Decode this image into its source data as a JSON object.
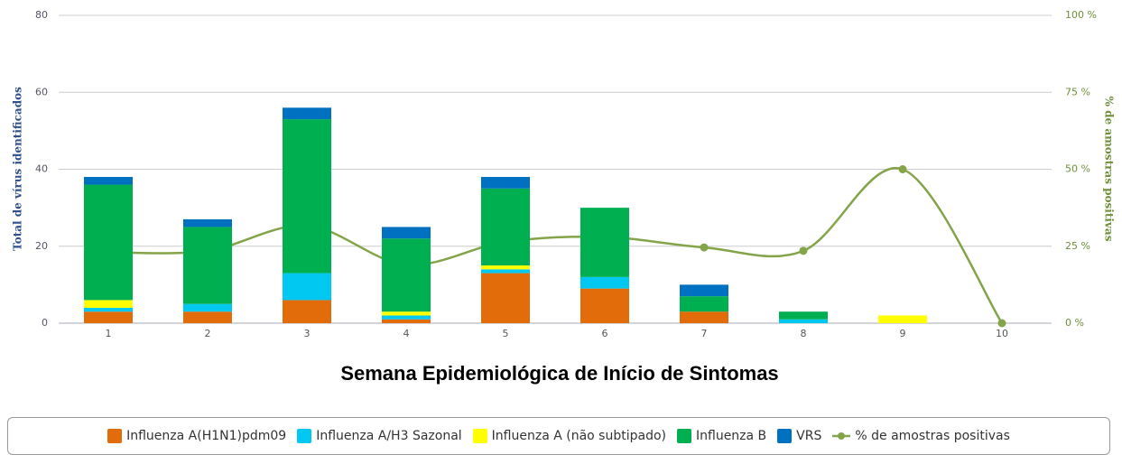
{
  "chart_data": {
    "type": "bar",
    "x_title": "Semana Epidemiológica de Início de Sintomas",
    "y_title": "Total de vírus identificados",
    "y2_title": "% de amostras positivas",
    "stacked": true,
    "categories": [
      "1",
      "2",
      "3",
      "4",
      "5",
      "6",
      "7",
      "8",
      "9",
      "10"
    ],
    "series": [
      {
        "name": "Influenza A(H1N1)pdm09",
        "color": "#e36c0a",
        "values": [
          3,
          3,
          6,
          1,
          13,
          9,
          3,
          0,
          0,
          0
        ]
      },
      {
        "name": "Influenza A/H3 Sazonal",
        "color": "#00c8f0",
        "values": [
          1,
          2,
          7,
          1,
          1,
          3,
          0,
          1,
          0,
          0
        ]
      },
      {
        "name": "Influenza A (não subtipado)",
        "color": "#ffff00",
        "values": [
          2,
          0,
          0,
          1,
          1,
          0,
          0,
          0,
          2,
          0
        ]
      },
      {
        "name": "Influenza B",
        "color": "#00b050",
        "values": [
          30,
          20,
          40,
          19,
          20,
          18,
          4,
          2,
          0,
          0
        ]
      },
      {
        "name": "VRS",
        "color": "#0070c0",
        "values": [
          2,
          2,
          3,
          3,
          3,
          0,
          3,
          0,
          0,
          0
        ]
      },
      {
        "name": "% de amostras positivas",
        "color": "#84a44a",
        "axis": "y2",
        "type": "line",
        "values": [
          23,
          23.5,
          31.7,
          19,
          26.4,
          28,
          24.6,
          23.5,
          50,
          0
        ]
      }
    ],
    "ylim": [
      0,
      80
    ],
    "yticks": [
      0,
      20,
      40,
      60,
      80
    ],
    "y2lim": [
      0,
      100
    ],
    "y2ticks": [
      {
        "value": 0,
        "label": "0 %"
      },
      {
        "value": 25,
        "label": "25 %"
      },
      {
        "value": 50,
        "label": "50 %"
      },
      {
        "value": 75,
        "label": "75 %"
      },
      {
        "value": 100,
        "label": "100 %"
      }
    ],
    "grid": true,
    "legend": "bottom"
  }
}
